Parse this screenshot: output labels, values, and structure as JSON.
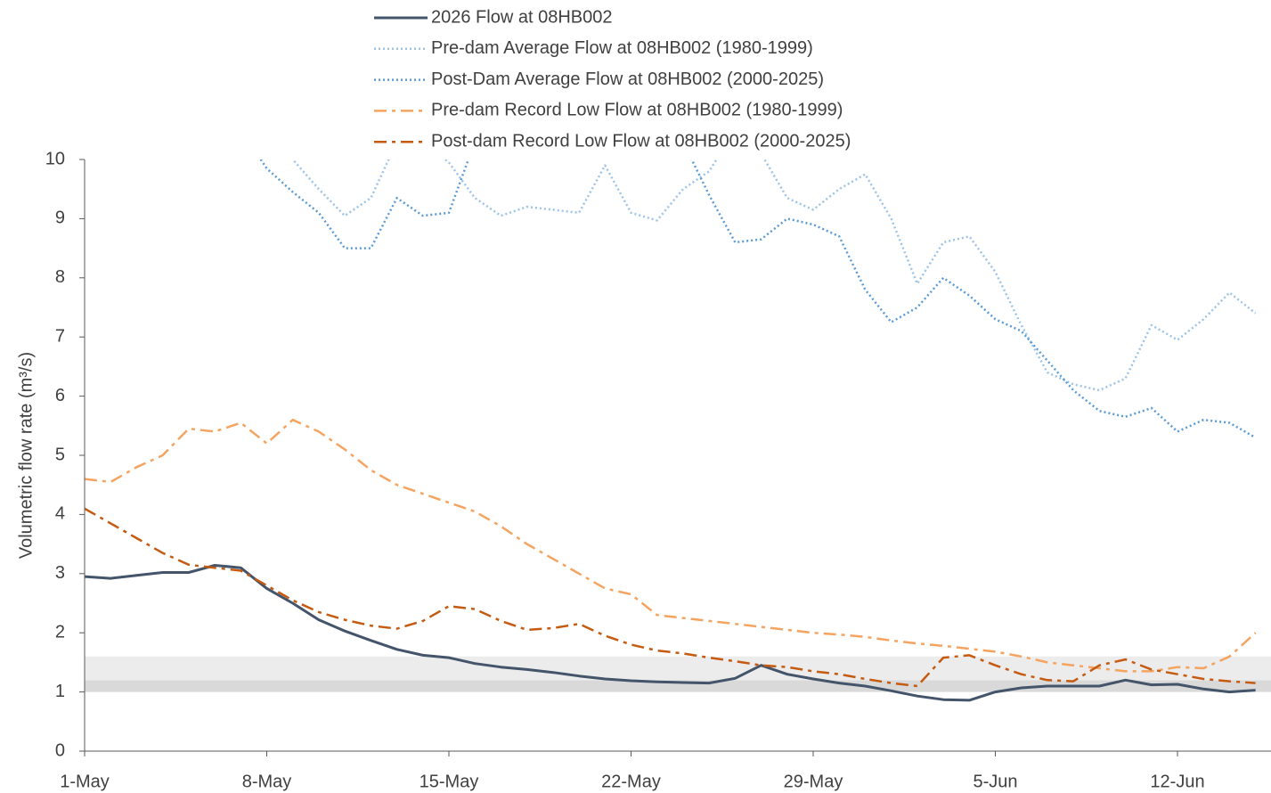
{
  "chart_data": {
    "type": "line",
    "y_label": "Volumetric flow rate (m³/s)",
    "categories": [
      "1-May",
      null,
      null,
      null,
      null,
      null,
      null,
      "8-May",
      null,
      null,
      null,
      null,
      null,
      null,
      "15-May",
      null,
      null,
      null,
      null,
      null,
      null,
      "22-May",
      null,
      null,
      null,
      null,
      null,
      null,
      "29-May",
      null,
      null,
      null,
      null,
      null,
      null,
      "5-Jun",
      null,
      null,
      null,
      null,
      null,
      null,
      "12-Jun",
      null,
      null,
      null
    ],
    "ylim": [
      0,
      10
    ],
    "yticks": [
      0,
      1,
      2,
      3,
      4,
      5,
      6,
      7,
      8,
      9,
      10
    ],
    "bands": [
      {
        "from": 1.0,
        "to": 1.2,
        "color": "#d9d9d9"
      },
      {
        "from": 1.2,
        "to": 1.6,
        "color": "#ececec"
      }
    ],
    "series": [
      {
        "name": "2026 Flow at 08HB002",
        "color": "#44546a",
        "dash": "solid",
        "values": [
          2.95,
          2.92,
          2.97,
          3.02,
          3.02,
          3.14,
          3.1,
          2.75,
          2.5,
          2.22,
          2.03,
          1.87,
          1.72,
          1.62,
          1.58,
          1.48,
          1.42,
          1.38,
          1.33,
          1.27,
          1.22,
          1.19,
          1.17,
          1.16,
          1.15,
          1.23,
          1.45,
          1.3,
          1.22,
          1.15,
          1.1,
          1.02,
          0.93,
          0.87,
          0.86,
          1.0,
          1.07,
          1.1,
          1.1,
          1.1,
          1.2,
          1.12,
          1.13,
          1.05,
          1.0,
          1.03
        ]
      },
      {
        "name": "Pre-dam Average Flow at 08HB002 (1980-1999)",
        "color": "#9dc3e6",
        "dash": "dotted",
        "values": [
          null,
          null,
          null,
          null,
          null,
          null,
          null,
          11,
          10.0,
          9.5,
          9.05,
          9.35,
          10.3,
          10.3,
          9.95,
          9.35,
          9.05,
          9.2,
          9.15,
          9.1,
          9.9,
          9.1,
          8.97,
          9.5,
          9.8,
          10.5,
          10.1,
          9.35,
          9.15,
          9.5,
          9.75,
          9.0,
          7.9,
          8.6,
          8.7,
          8.1,
          7.2,
          6.4,
          6.2,
          6.1,
          6.3,
          7.2,
          6.95,
          7.3,
          7.75,
          7.4
        ]
      },
      {
        "name": "Post-Dam Average Flow at 08HB002 (2000-2025)",
        "color": "#5b9bd5",
        "dash": "dotted",
        "values": [
          null,
          null,
          null,
          null,
          null,
          null,
          10.5,
          9.85,
          9.45,
          9.1,
          8.5,
          8.5,
          9.35,
          9.05,
          9.1,
          10.3,
          10.5,
          10.5,
          10.5,
          10.5,
          10.3,
          10.2,
          10.5,
          10.3,
          9.4,
          8.6,
          8.65,
          9.0,
          8.9,
          8.7,
          7.8,
          7.25,
          7.5,
          8.0,
          7.7,
          7.3,
          7.1,
          6.6,
          6.1,
          5.75,
          5.65,
          5.8,
          5.4,
          5.6,
          5.55,
          5.3
        ]
      },
      {
        "name": "Pre-dam Record Low Flow at 08HB002 (1980-1999)",
        "color": "#f4a460",
        "dash": "dashdot",
        "values": [
          4.6,
          4.55,
          4.8,
          5.0,
          5.45,
          5.4,
          5.55,
          5.2,
          5.6,
          5.4,
          5.1,
          4.75,
          4.5,
          4.35,
          4.2,
          4.05,
          3.8,
          3.5,
          3.25,
          3.0,
          2.75,
          2.65,
          2.3,
          2.25,
          2.2,
          2.15,
          2.1,
          2.05,
          2.0,
          1.97,
          1.93,
          1.87,
          1.82,
          1.78,
          1.73,
          1.68,
          1.6,
          1.5,
          1.45,
          1.4,
          1.35,
          1.35,
          1.42,
          1.4,
          1.6,
          2.0
        ]
      },
      {
        "name": "Post-dam Record Low Flow at 08HB002 (2000-2025)",
        "color": "#c55a11",
        "dash": "dashdot",
        "values": [
          4.1,
          3.85,
          3.6,
          3.35,
          3.15,
          3.1,
          3.05,
          2.8,
          2.55,
          2.35,
          2.22,
          2.12,
          2.07,
          2.2,
          2.45,
          2.4,
          2.2,
          2.05,
          2.08,
          2.15,
          1.95,
          1.8,
          1.7,
          1.65,
          1.58,
          1.52,
          1.45,
          1.42,
          1.35,
          1.3,
          1.22,
          1.15,
          1.1,
          1.58,
          1.62,
          1.45,
          1.3,
          1.2,
          1.18,
          1.45,
          1.55,
          1.38,
          1.3,
          1.22,
          1.18,
          1.15
        ]
      }
    ]
  }
}
